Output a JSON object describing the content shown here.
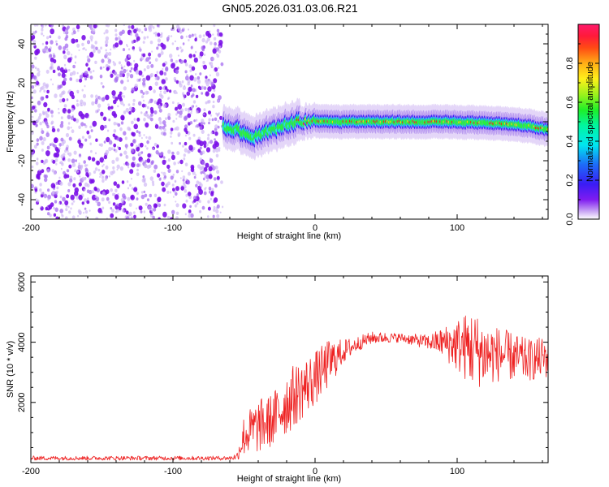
{
  "title": "GN05.2026.031.03.06.R21",
  "chart_data": [
    {
      "type": "heatmap",
      "name": "spectrogram",
      "xlabel": "Height of straight line (km)",
      "ylabel": "Frequency (Hz)",
      "xlim": [
        -200,
        164
      ],
      "ylim": [
        -50,
        50
      ],
      "x_ticks": [
        -200,
        -100,
        0,
        100
      ],
      "x_tick_labels": [
        "-200",
        "-100",
        "0",
        "100"
      ],
      "y_ticks": [
        -40,
        -20,
        0,
        20,
        40
      ],
      "y_tick_labels": [
        "-40",
        "-20",
        "0",
        "20",
        "40"
      ],
      "noise_region_x": [
        -200,
        -65
      ],
      "ridge_points": [
        {
          "x": -64,
          "y": -3
        },
        {
          "x": -55,
          "y": -4
        },
        {
          "x": -48,
          "y": -6
        },
        {
          "x": -42,
          "y": -8
        },
        {
          "x": -35,
          "y": -5
        },
        {
          "x": -28,
          "y": -4
        },
        {
          "x": -20,
          "y": -1
        },
        {
          "x": -12,
          "y": 0
        },
        {
          "x": -5,
          "y": 0
        },
        {
          "x": 5,
          "y": 0
        },
        {
          "x": 20,
          "y": 0
        },
        {
          "x": 60,
          "y": 0
        },
        {
          "x": 100,
          "y": 0
        },
        {
          "x": 130,
          "y": -1
        },
        {
          "x": 150,
          "y": -2
        },
        {
          "x": 164,
          "y": -4
        }
      ],
      "colorbar": {
        "label": "Normalized spectral amplitude",
        "ticks": [
          0.0,
          0.2,
          0.4,
          0.6,
          0.8
        ],
        "tick_labels": [
          "0.0",
          "0.2",
          "0.4",
          "0.6",
          "0.8"
        ],
        "range": [
          0,
          1
        ]
      }
    },
    {
      "type": "line",
      "name": "snr",
      "xlabel": "Height of straight line (km)",
      "ylabel": "SNR (10 * v/v)",
      "xlim": [
        -200,
        164
      ],
      "ylim": [
        0,
        6200
      ],
      "x_ticks": [
        -200,
        -100,
        0,
        100
      ],
      "x_tick_labels": [
        "-200",
        "-100",
        "0",
        "100"
      ],
      "y_ticks": [
        2000,
        4000,
        6000
      ],
      "y_tick_labels": [
        "2000",
        "4000",
        "6000"
      ],
      "series": [
        {
          "name": "SNR",
          "color": "#ee2222",
          "envelope_x": [
            -200,
            -60,
            -55,
            -50,
            -40,
            -30,
            -20,
            -10,
            0,
            10,
            20,
            30,
            40,
            60,
            80,
            90,
            100,
            110,
            120,
            130,
            140,
            150,
            164
          ],
          "envelope_mean": [
            150,
            150,
            200,
            900,
            1200,
            1400,
            2000,
            2400,
            2800,
            3300,
            3700,
            3950,
            4150,
            4150,
            4000,
            4000,
            3900,
            3800,
            3600,
            3600,
            3500,
            3400,
            3500
          ],
          "envelope_spread": [
            70,
            70,
            120,
            700,
            900,
            900,
            1100,
            1000,
            900,
            800,
            400,
            250,
            200,
            150,
            250,
            500,
            900,
            1300,
            1100,
            900,
            800,
            700,
            700
          ]
        }
      ]
    }
  ],
  "colors": {
    "snr_line": "#ee2222",
    "noise_dot": "#7a10e8",
    "frame": "#000000"
  }
}
